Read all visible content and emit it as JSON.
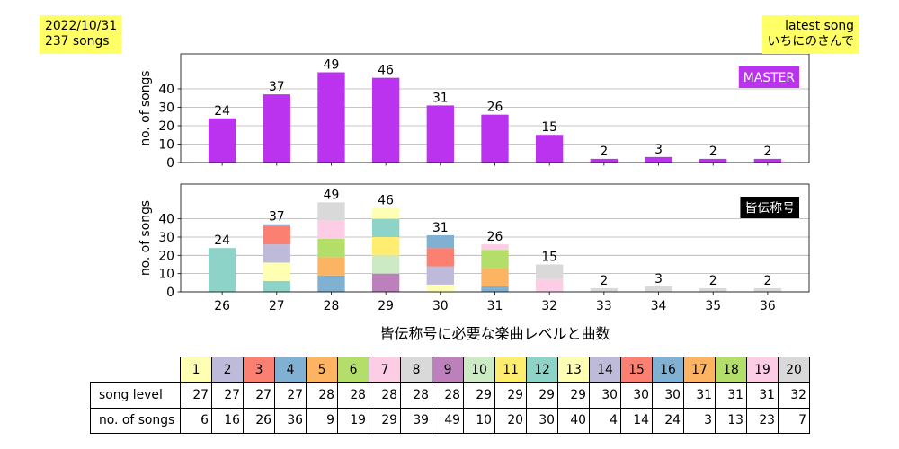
{
  "info": {
    "date": "2022/10/31",
    "song_count": "237 songs"
  },
  "latest": {
    "label": "latest song",
    "title": "いちにのさんで"
  },
  "colors": {
    "info_box": "#ffff66",
    "master": "#bb33ee",
    "title_box": "#000000",
    "legend_text": "#ffffff",
    "grid": "#b0b0b0"
  },
  "chart_data": [
    {
      "type": "bar",
      "x": [
        26,
        27,
        28,
        29,
        30,
        31,
        32,
        33,
        34,
        35,
        36
      ],
      "values": [
        24,
        37,
        49,
        46,
        31,
        26,
        15,
        2,
        3,
        2,
        2
      ],
      "color": "#bb33ee",
      "legend": "MASTER",
      "legend_position": "top-right",
      "xlabel": "",
      "ylabel": "no. of songs",
      "ylim": [
        0,
        59
      ],
      "yticks": [
        0,
        10,
        20,
        30,
        40
      ],
      "grid": true
    },
    {
      "type": "bar",
      "stacked": true,
      "x": [
        26,
        27,
        28,
        29,
        30,
        31,
        32,
        33,
        34,
        35,
        36
      ],
      "values": [
        24,
        37,
        49,
        46,
        31,
        26,
        15,
        2,
        3,
        2,
        2
      ],
      "segments": [
        [
          {
            "value": 24,
            "color": "#8dd3c7"
          }
        ],
        [
          {
            "value": 6,
            "color": "#8dd3c7"
          },
          {
            "value": 10,
            "color": "#ffffb3"
          },
          {
            "value": 10,
            "color": "#bebada"
          },
          {
            "value": 10,
            "color": "#fb8072"
          },
          {
            "value": 1,
            "color": "#80b1d3"
          }
        ],
        [
          {
            "value": 9,
            "color": "#80b1d3"
          },
          {
            "value": 10,
            "color": "#fdb462"
          },
          {
            "value": 10,
            "color": "#b3de69"
          },
          {
            "value": 10,
            "color": "#fccde5"
          },
          {
            "value": 10,
            "color": "#d9d9d9"
          }
        ],
        [
          {
            "value": 10,
            "color": "#bc80bd"
          },
          {
            "value": 10,
            "color": "#ccebc5"
          },
          {
            "value": 10,
            "color": "#ffed6f"
          },
          {
            "value": 10,
            "color": "#8dd3c7"
          },
          {
            "value": 6,
            "color": "#ffffb3"
          }
        ],
        [
          {
            "value": 4,
            "color": "#ffffb3"
          },
          {
            "value": 10,
            "color": "#bebada"
          },
          {
            "value": 10,
            "color": "#fb8072"
          },
          {
            "value": 7,
            "color": "#80b1d3"
          }
        ],
        [
          {
            "value": 3,
            "color": "#80b1d3"
          },
          {
            "value": 10,
            "color": "#fdb462"
          },
          {
            "value": 10,
            "color": "#b3de69"
          },
          {
            "value": 3,
            "color": "#fccde5"
          }
        ],
        [
          {
            "value": 7,
            "color": "#fccde5"
          },
          {
            "value": 8,
            "color": "#d9d9d9"
          }
        ],
        [
          {
            "value": 2,
            "color": "#d9d9d9"
          }
        ],
        [
          {
            "value": 3,
            "color": "#d9d9d9"
          }
        ],
        [
          {
            "value": 2,
            "color": "#d9d9d9"
          }
        ],
        [
          {
            "value": 2,
            "color": "#d9d9d9"
          }
        ]
      ],
      "legend": "皆伝称号",
      "legend_position": "top-right",
      "xlabel": "皆伝称号に必要な楽曲レベルと曲数",
      "ylabel": "no. of songs",
      "ylim": [
        0,
        59
      ],
      "yticks": [
        0,
        10,
        20,
        30,
        40
      ],
      "grid": true
    },
    {
      "type": "table",
      "columns": [
        1,
        2,
        3,
        4,
        5,
        6,
        7,
        8,
        9,
        10,
        11,
        12,
        13,
        14,
        15,
        16,
        17,
        18,
        19,
        20
      ],
      "column_colors": [
        "#ffffb3",
        "#bebada",
        "#fb8072",
        "#80b1d3",
        "#fdb462",
        "#b3de69",
        "#fccde5",
        "#d9d9d9",
        "#bc80bd",
        "#ccebc5",
        "#ffed6f",
        "#8dd3c7",
        "#ffffb3",
        "#bebada",
        "#fb8072",
        "#80b1d3",
        "#fdb462",
        "#b3de69",
        "#fccde5",
        "#d9d9d9"
      ],
      "rows": [
        {
          "label": "song level",
          "cells": [
            27,
            27,
            27,
            27,
            28,
            28,
            28,
            28,
            28,
            29,
            29,
            29,
            29,
            30,
            30,
            30,
            31,
            31,
            31,
            32
          ]
        },
        {
          "label": "no. of songs",
          "cells": [
            6,
            16,
            26,
            36,
            9,
            19,
            29,
            39,
            49,
            10,
            20,
            30,
            40,
            4,
            14,
            24,
            3,
            13,
            23,
            7
          ]
        }
      ]
    }
  ]
}
